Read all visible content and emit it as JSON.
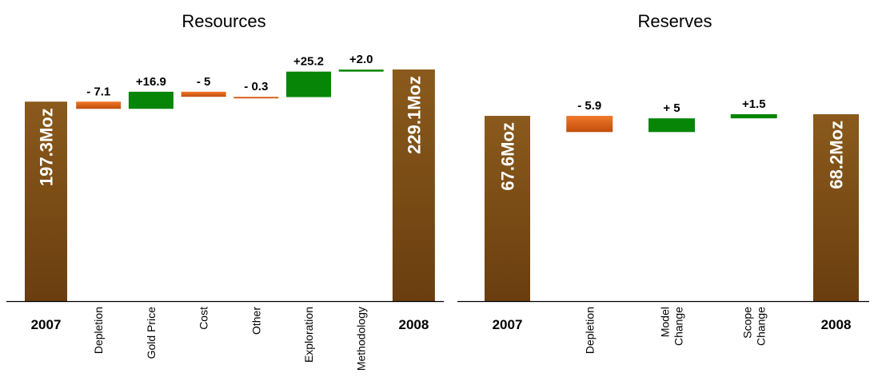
{
  "colors": {
    "total_top": "#8a5a1c",
    "total_bottom": "#6a3e0f",
    "decrease_top": "#f07828",
    "decrease_bottom": "#c04e0c",
    "increase": "#078507",
    "axis": "#000000"
  },
  "chart_data": [
    {
      "type": "waterfall",
      "title": "Resources",
      "unit": "Moz",
      "steps": [
        {
          "category": "2007",
          "kind": "total",
          "value": 197.3,
          "label": "197.3Moz"
        },
        {
          "category": "Depletion",
          "kind": "delta",
          "value": -7.1,
          "label": "- 7.1"
        },
        {
          "category": "Gold Price",
          "kind": "delta",
          "value": 16.9,
          "label": "+16.9"
        },
        {
          "category": "Cost",
          "kind": "delta",
          "value": -5,
          "label": "- 5"
        },
        {
          "category": "Other",
          "kind": "delta",
          "value": -0.3,
          "label": "- 0.3"
        },
        {
          "category": "Exploration",
          "kind": "delta",
          "value": 25.2,
          "label": "+25.2"
        },
        {
          "category": "Methodology",
          "kind": "delta",
          "value": 2.0,
          "label": "+2.0"
        },
        {
          "category": "2008",
          "kind": "total",
          "value": 229.1,
          "label": "229.1Moz"
        }
      ]
    },
    {
      "type": "waterfall",
      "title": "Reserves",
      "unit": "Moz",
      "steps": [
        {
          "category": "2007",
          "kind": "total",
          "value": 67.6,
          "label": "67.6Moz"
        },
        {
          "category": "Depletion",
          "kind": "delta",
          "value": -5.9,
          "label": "- 5.9"
        },
        {
          "category": "Model Change",
          "kind": "delta",
          "value": 5,
          "label": "+ 5"
        },
        {
          "category": "Scope Change",
          "kind": "delta",
          "value": 1.5,
          "label": "+1.5"
        },
        {
          "category": "2008",
          "kind": "total",
          "value": 68.2,
          "label": "68.2Moz"
        }
      ]
    }
  ]
}
